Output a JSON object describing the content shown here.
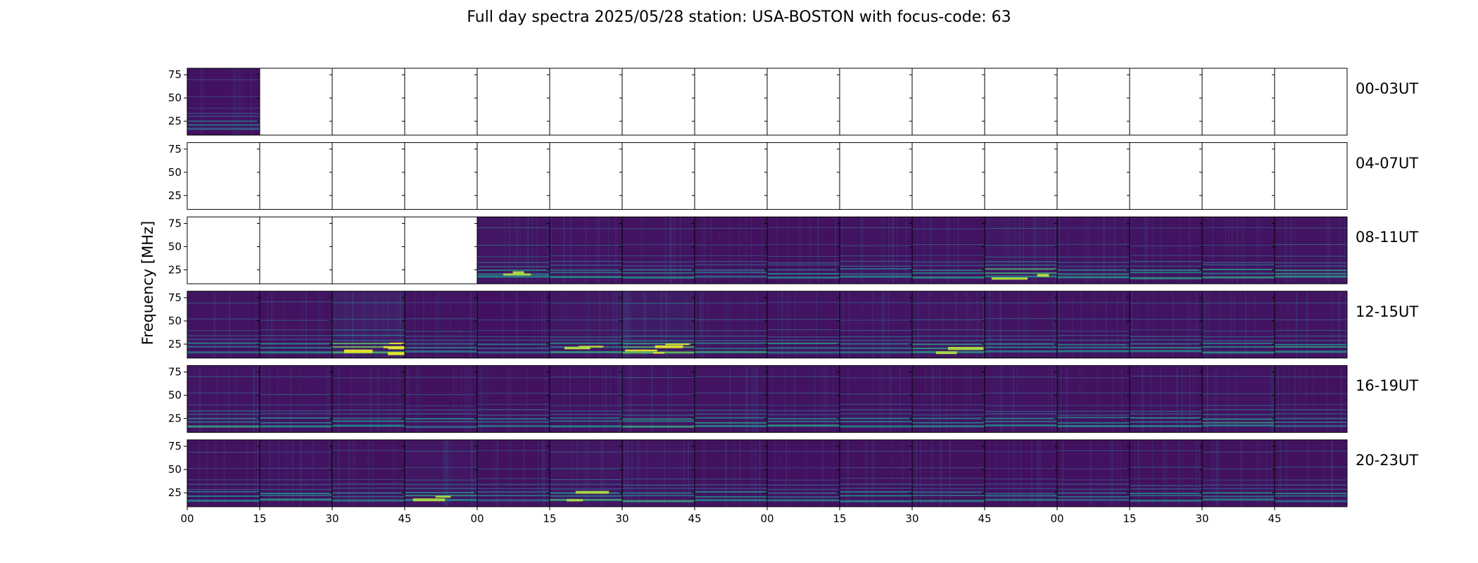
{
  "chart_data": {
    "type": "heatmap",
    "title": "Full day spectra 2025/05/28 station: USA-BOSTON with focus-code: 63",
    "ylabel": "Frequency [MHz]",
    "xlabel": "",
    "colormap": "viridis",
    "background_color": "#440154",
    "grid": false,
    "panels_per_row": 16,
    "panel_minutes": 15,
    "ylim": [
      10,
      82
    ],
    "yticks": [
      "25",
      "50",
      "75"
    ],
    "xticks": [
      "00",
      "15",
      "30",
      "45",
      "00",
      "15",
      "30",
      "45",
      "00",
      "15",
      "30",
      "45",
      "00",
      "15",
      "30",
      "45"
    ],
    "rows": [
      {
        "label": "00-03UT",
        "has_data": [
          true,
          false,
          false,
          false,
          false,
          false,
          false,
          false,
          false,
          false,
          false,
          false,
          false,
          false,
          false,
          false
        ],
        "intensity": [
          0.35,
          0,
          0,
          0,
          0,
          0,
          0,
          0,
          0,
          0,
          0,
          0,
          0,
          0,
          0,
          0
        ]
      },
      {
        "label": "04-07UT",
        "has_data": [
          false,
          false,
          false,
          false,
          false,
          false,
          false,
          false,
          false,
          false,
          false,
          false,
          false,
          false,
          false,
          false
        ],
        "intensity": [
          0,
          0,
          0,
          0,
          0,
          0,
          0,
          0,
          0,
          0,
          0,
          0,
          0,
          0,
          0,
          0
        ]
      },
      {
        "label": "08-11UT",
        "has_data": [
          false,
          false,
          false,
          false,
          true,
          true,
          true,
          true,
          true,
          true,
          true,
          true,
          true,
          true,
          true,
          true
        ],
        "intensity": [
          0,
          0,
          0,
          0,
          0.55,
          0.5,
          0.45,
          0.4,
          0.4,
          0.45,
          0.45,
          0.6,
          0.5,
          0.45,
          0.45,
          0.5
        ]
      },
      {
        "label": "12-15UT",
        "has_data": [
          true,
          true,
          true,
          true,
          true,
          true,
          true,
          true,
          true,
          true,
          true,
          true,
          true,
          true,
          true,
          true
        ],
        "intensity": [
          0.45,
          0.45,
          0.85,
          0.45,
          0.35,
          0.6,
          0.8,
          0.5,
          0.45,
          0.5,
          0.55,
          0.5,
          0.45,
          0.45,
          0.5,
          0.5
        ]
      },
      {
        "label": "16-19UT",
        "has_data": [
          true,
          true,
          true,
          true,
          true,
          true,
          true,
          true,
          true,
          true,
          true,
          true,
          true,
          true,
          true,
          true
        ],
        "intensity": [
          0.5,
          0.45,
          0.45,
          0.4,
          0.4,
          0.45,
          0.5,
          0.5,
          0.45,
          0.45,
          0.4,
          0.5,
          0.4,
          0.45,
          0.5,
          0.4
        ]
      },
      {
        "label": "20-23UT",
        "has_data": [
          true,
          true,
          true,
          true,
          true,
          true,
          true,
          true,
          true,
          true,
          true,
          true,
          true,
          true,
          true,
          true
        ],
        "intensity": [
          0.4,
          0.45,
          0.4,
          0.55,
          0.4,
          0.55,
          0.5,
          0.4,
          0.35,
          0.4,
          0.4,
          0.35,
          0.35,
          0.4,
          0.4,
          0.4
        ]
      }
    ]
  }
}
